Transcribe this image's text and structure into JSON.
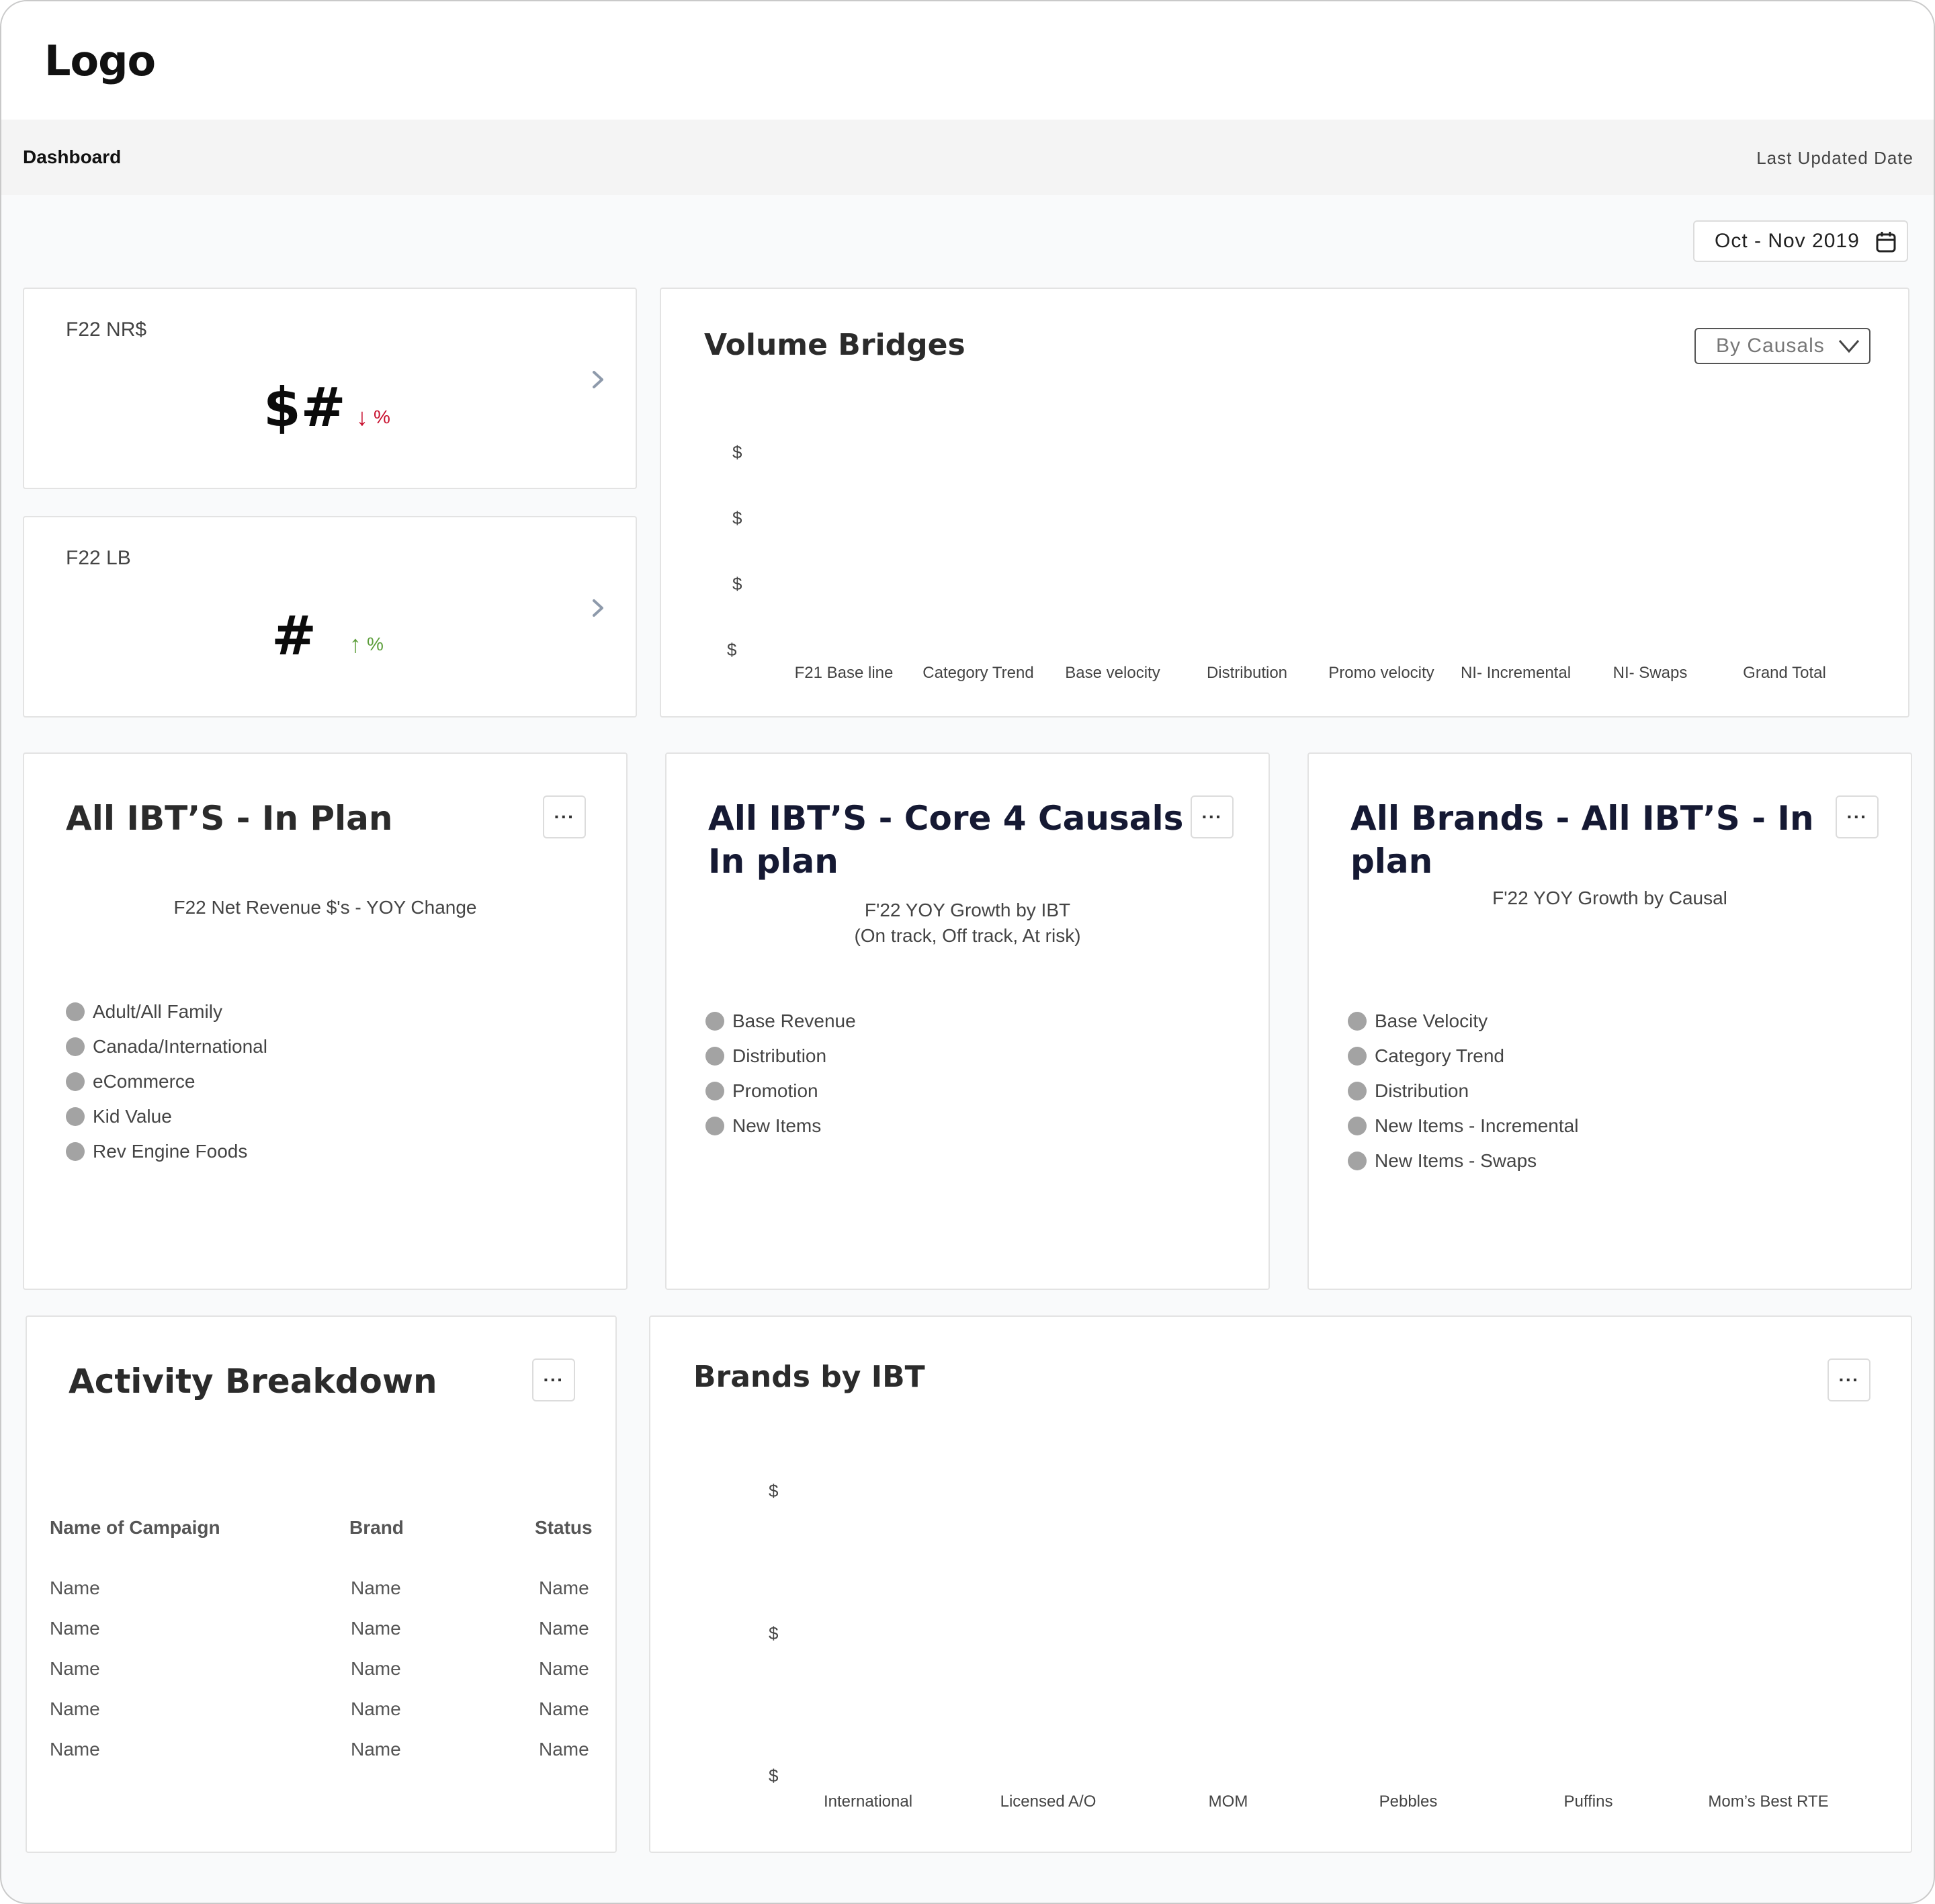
{
  "header": {
    "logo": "Logo"
  },
  "subbar": {
    "title": "Dashboard",
    "last_updated": "Last Updated Date"
  },
  "date_range": {
    "label": "Oct - Nov 2019",
    "icon": "calendar-icon"
  },
  "kpis": [
    {
      "label": "F22 NR$",
      "value": "$#",
      "delta": "%",
      "direction": "down",
      "arrow": "↓",
      "color": "#c8102e"
    },
    {
      "label": "F22 LB",
      "value": "#",
      "delta": "%",
      "direction": "up",
      "arrow": "↑",
      "color": "#5c9e3a"
    }
  ],
  "volume_bridges": {
    "title": "Volume Bridges",
    "select_value": "By Causals",
    "y_ticks": [
      "$",
      "$",
      "$",
      "$"
    ],
    "categories": [
      "F21 Base line",
      "Category Trend",
      "Base velocity",
      "Distribution",
      "Promo velocity",
      "NI- Incremental",
      "NI- Swaps",
      "Grand Total"
    ]
  },
  "ibt_in_plan": {
    "title": "All IBT’S - In Plan",
    "caption": "F22 Net Revenue $'s - YOY Change",
    "legend": [
      "Adult/All Family",
      "Canada/International",
      "eCommerce",
      "Kid Value",
      "Rev Engine Foods"
    ],
    "more": "···"
  },
  "ibt_core4": {
    "title_line1": "All IBT’S - Core 4 Causals -",
    "title_line2": "In plan",
    "caption_line1": "F'22 YOY Growth by IBT",
    "caption_line2": "(On track, Off track, At risk)",
    "legend": [
      "Base Revenue",
      "Distribution",
      "Promotion",
      "New Items"
    ],
    "more": "···"
  },
  "brands_in_plan": {
    "title_line1": "All Brands - All IBT’S - In",
    "title_line2": "plan",
    "caption": "F'22 YOY Growth by Causal",
    "legend": [
      "Base Velocity",
      "Category Trend",
      "Distribution",
      "New Items - Incremental",
      "New Items - Swaps"
    ],
    "more": "···"
  },
  "activity": {
    "title": "Activity Breakdown",
    "more": "···",
    "columns": [
      "Name of Campaign",
      "Brand",
      "Status"
    ],
    "rows": [
      [
        "Name",
        "Name",
        "Name"
      ],
      [
        "Name",
        "Name",
        "Name"
      ],
      [
        "Name",
        "Name",
        "Name"
      ],
      [
        "Name",
        "Name",
        "Name"
      ],
      [
        "Name",
        "Name",
        "Name"
      ]
    ]
  },
  "brands_by_ibt": {
    "title": "Brands by IBT",
    "more": "···",
    "y_ticks": [
      "$",
      "$",
      "$"
    ],
    "categories": [
      "International",
      "Licensed A/O",
      "MOM",
      "Pebbles",
      "Puffins",
      "Mom’s Best RTE"
    ]
  }
}
